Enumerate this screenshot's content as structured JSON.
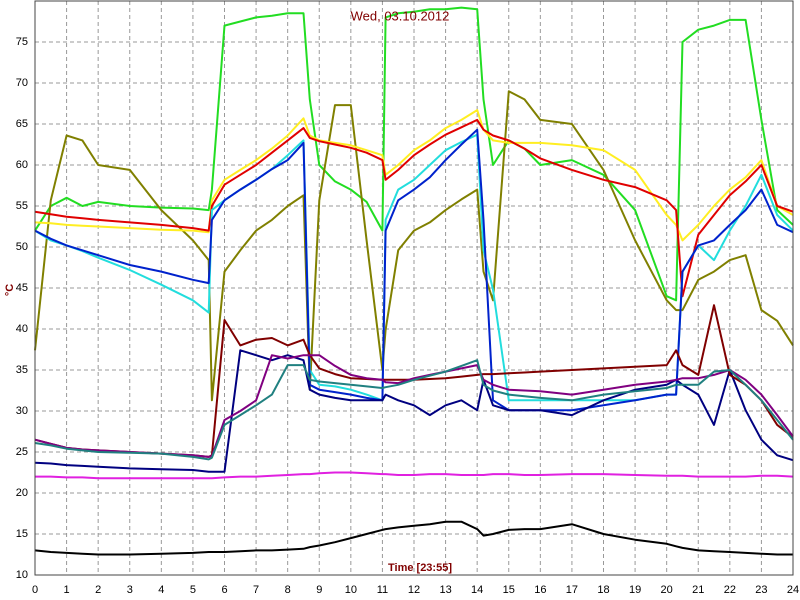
{
  "chart_data": {
    "type": "line",
    "title": "Wed, 03.10.2012",
    "xlabel": "Time [23:55]",
    "ylabel": "°C",
    "grid": true,
    "xlim": [
      0,
      24
    ],
    "xticks": [
      0,
      1,
      2,
      3,
      4,
      5,
      6,
      7,
      8,
      9,
      10,
      11,
      12,
      13,
      14,
      15,
      16,
      17,
      18,
      19,
      20,
      21,
      22,
      23,
      24
    ],
    "ylim": [
      10,
      80
    ],
    "yticks": [
      10,
      15,
      20,
      25,
      30,
      35,
      40,
      45,
      50,
      55,
      60,
      65,
      70,
      75
    ],
    "x": [
      0,
      0.5,
      1,
      1.5,
      2,
      3,
      4,
      5,
      5.5,
      5.6,
      6,
      6.5,
      7,
      7.5,
      8,
      8.5,
      8.7,
      9,
      9.5,
      10,
      10.5,
      11,
      11.1,
      11.5,
      12,
      12.5,
      13,
      13.5,
      14,
      14.2,
      14.5,
      15,
      15.5,
      16,
      17,
      18,
      19,
      20,
      20.3,
      20.5,
      21,
      21.5,
      22,
      22.5,
      23,
      23.5,
      24
    ],
    "series": [
      {
        "color": "#22dd22",
        "values": [
          52,
          55,
          56,
          55,
          55.5,
          55,
          54.8,
          54.7,
          54.5,
          57,
          77,
          77.5,
          78,
          78.2,
          78.5,
          78.5,
          68,
          60,
          58,
          57,
          55.5,
          52,
          78,
          78.5,
          78.7,
          79,
          79,
          79.2,
          79,
          68,
          60,
          63,
          62,
          60,
          60.6,
          58.8,
          54.5,
          44,
          43.5,
          75,
          76.5,
          77,
          77.7,
          77.7,
          65.5,
          54.5,
          52.7
        ]
      },
      {
        "color": "#808000",
        "values": [
          37.4,
          55.7,
          63.6,
          63,
          60,
          59.4,
          54.5,
          50.8,
          48.4,
          31.3,
          47,
          49.6,
          52,
          53.3,
          55,
          56.3,
          32.6,
          55.7,
          67.3,
          67.3,
          50.8,
          35,
          39.9,
          49.6,
          52,
          53,
          54.5,
          55.8,
          57,
          47,
          43.5,
          69,
          68,
          65.5,
          65,
          59.4,
          50.8,
          43.5,
          42.3,
          42.3,
          46,
          47,
          48.4,
          49,
          42.3,
          41,
          38
        ]
      },
      {
        "color": "#ffee22",
        "values": [
          53,
          52.9,
          52.7,
          52.6,
          52.5,
          52.3,
          52.1,
          52,
          51.8,
          55.7,
          58.2,
          59.4,
          60.6,
          62,
          63.6,
          65.7,
          63.6,
          63,
          62.7,
          62.4,
          61.8,
          61.2,
          58.8,
          60,
          61.8,
          63,
          64.5,
          65.5,
          66.7,
          64.3,
          63,
          62.7,
          62.7,
          62.7,
          62.4,
          61.8,
          59.4,
          53.9,
          52.7,
          50.8,
          52.7,
          55,
          57,
          58.5,
          60.6,
          55,
          53.9
        ]
      },
      {
        "color": "#e00000",
        "values": [
          54.3,
          54,
          53.7,
          53.5,
          53.3,
          53,
          52.7,
          52.3,
          52,
          55,
          57.6,
          58.8,
          60,
          61.5,
          63,
          64.5,
          63.3,
          62.9,
          62.5,
          62.1,
          61.5,
          60.6,
          58.2,
          59.4,
          61.2,
          62.5,
          63.7,
          64.6,
          65.5,
          64.3,
          63.6,
          63,
          62,
          60.8,
          59.4,
          58.2,
          57.3,
          55.7,
          54.5,
          44,
          51.5,
          53.9,
          56.3,
          58,
          60,
          55,
          54.3
        ]
      },
      {
        "color": "#22dddd",
        "values": [
          52,
          50.8,
          50.2,
          49.5,
          48.7,
          47.2,
          45.4,
          43.5,
          42,
          54.5,
          55.7,
          57,
          58.2,
          59.5,
          61.2,
          63,
          35,
          33.2,
          33,
          32.6,
          32,
          31.3,
          53.3,
          57,
          58.2,
          60,
          61.8,
          62.8,
          63.7,
          49.6,
          44.8,
          31.3,
          31.3,
          31.3,
          31.3,
          31.3,
          31.3,
          32,
          32,
          47,
          50.2,
          48.4,
          52,
          55,
          58.8,
          53.9,
          52
        ]
      },
      {
        "color": "#0022cc",
        "values": [
          52,
          51,
          50.2,
          49.6,
          49,
          47.8,
          47,
          46,
          45.6,
          53.3,
          55.7,
          57,
          58.2,
          59.5,
          60.6,
          62.7,
          33.2,
          32.6,
          32.3,
          32,
          31.6,
          31.3,
          52,
          55.7,
          57,
          58.5,
          60.6,
          62.5,
          64.3,
          53.3,
          31.3,
          30.1,
          30.1,
          30.1,
          30.1,
          30.7,
          31.3,
          32,
          32,
          47,
          50.2,
          50.8,
          52.7,
          54.5,
          57,
          52.7,
          51.8
        ]
      },
      {
        "color": "#000080",
        "values": [
          23.7,
          23.6,
          23.4,
          23.3,
          23.2,
          23,
          22.9,
          22.8,
          22.6,
          22.6,
          22.6,
          37.4,
          36.8,
          36.2,
          36.8,
          36.2,
          32.6,
          32,
          31.6,
          31.3,
          31.3,
          31.3,
          32,
          31.3,
          30.7,
          29.5,
          30.7,
          31.3,
          30.1,
          33.8,
          30.7,
          30.1,
          30.1,
          30.1,
          29.5,
          31.3,
          32.6,
          33.2,
          33.8,
          33.2,
          32,
          28.3,
          35,
          30.1,
          26.5,
          24.6,
          24
        ]
      },
      {
        "color": "#800000",
        "values": [
          26.5,
          26,
          25.5,
          25.3,
          25.2,
          25,
          24.8,
          24.6,
          24.4,
          24.6,
          41.1,
          38,
          38.7,
          38.9,
          38,
          38.7,
          36.8,
          35.2,
          34.5,
          34,
          33.9,
          33.8,
          33.8,
          33.8,
          33.8,
          33.9,
          34,
          34.2,
          34.4,
          34.5,
          34.5,
          34.6,
          34.7,
          34.8,
          35,
          35.2,
          35.4,
          35.6,
          37.4,
          35.6,
          34.4,
          42.9,
          34.4,
          33.2,
          31.3,
          28.3,
          26.8
        ]
      },
      {
        "color": "#800080",
        "values": [
          26.5,
          26,
          25.5,
          25.3,
          25.2,
          25,
          24.8,
          24.6,
          24.4,
          24.5,
          28.9,
          30,
          31.3,
          36.8,
          36.4,
          36.8,
          36.8,
          36.8,
          35.5,
          34.4,
          34,
          33.8,
          33.5,
          33.4,
          34,
          34.4,
          34.8,
          35.2,
          35.6,
          33.8,
          33.2,
          32.6,
          32.5,
          32.4,
          32,
          32.6,
          33.2,
          33.6,
          33.8,
          34,
          34,
          34.4,
          35,
          33.8,
          32,
          29.5,
          26.9
        ]
      },
      {
        "color": "#208080",
        "values": [
          26.1,
          25.8,
          25.4,
          25.2,
          25,
          24.9,
          24.8,
          24.4,
          24.1,
          24.3,
          28.3,
          29.5,
          30.7,
          32,
          35.6,
          35.6,
          33.8,
          33.6,
          33.4,
          33.2,
          33,
          32.8,
          32.9,
          33.2,
          33.8,
          34.3,
          34.8,
          35.5,
          36.2,
          33.2,
          32.5,
          32,
          31.8,
          31.6,
          31.3,
          32,
          32.4,
          32.8,
          33.2,
          33.2,
          33.2,
          34.8,
          35,
          33.2,
          31.3,
          28.9,
          26.5
        ]
      },
      {
        "color": "#e020e0",
        "values": [
          22,
          22,
          21.9,
          21.9,
          21.8,
          21.8,
          21.8,
          21.8,
          21.8,
          21.8,
          21.9,
          22,
          22,
          22.1,
          22.2,
          22.3,
          22.3,
          22.4,
          22.5,
          22.5,
          22.4,
          22.3,
          22.3,
          22.2,
          22.2,
          22.3,
          22.3,
          22.2,
          22.2,
          22.2,
          22.3,
          22.3,
          22.2,
          22.2,
          22.3,
          22.3,
          22.2,
          22.1,
          22.1,
          22.1,
          22,
          22,
          22,
          22,
          22.1,
          22.1,
          22
        ]
      },
      {
        "color": "#000000",
        "values": [
          13,
          12.8,
          12.7,
          12.6,
          12.5,
          12.5,
          12.6,
          12.7,
          12.8,
          12.8,
          12.8,
          12.9,
          13,
          13,
          13.1,
          13.2,
          13.4,
          13.6,
          14,
          14.5,
          15,
          15.5,
          15.6,
          15.8,
          16,
          16.2,
          16.5,
          16.5,
          15.6,
          14.8,
          15,
          15.5,
          15.6,
          15.6,
          16.2,
          15,
          14.3,
          13.8,
          13.5,
          13.3,
          13,
          12.9,
          12.8,
          12.7,
          12.6,
          12.5,
          12.5
        ]
      }
    ]
  }
}
